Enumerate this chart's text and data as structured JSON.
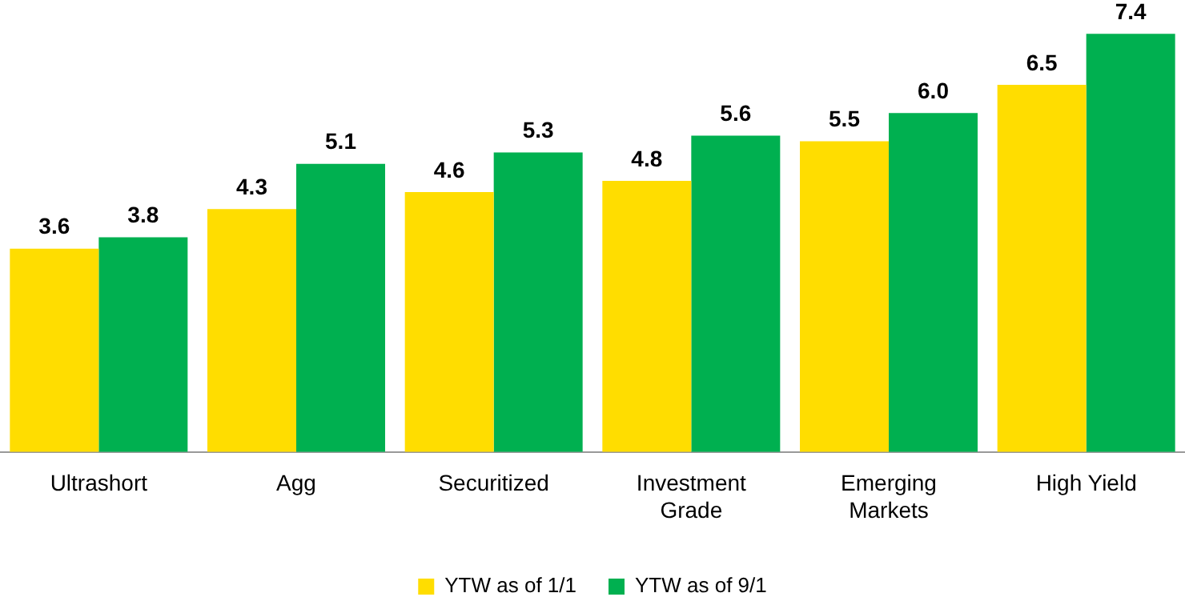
{
  "chart_data": {
    "type": "bar",
    "categories": [
      "Ultrashort",
      "Agg",
      "Securitized",
      "Investment Grade",
      "Emerging Markets",
      "High Yield"
    ],
    "series": [
      {
        "name": "YTW as of 1/1",
        "color": "#ffdd00",
        "values": [
          3.6,
          4.3,
          4.6,
          4.8,
          5.5,
          6.5
        ],
        "value_labels": [
          "3.6",
          "4.3",
          "4.6",
          "4.8",
          "5.5",
          "6.5"
        ]
      },
      {
        "name": "YTW as of 9/1",
        "color": "#00b050",
        "values": [
          3.8,
          5.1,
          5.3,
          5.6,
          6.0,
          7.4
        ],
        "value_labels": [
          "3.8",
          "5.1",
          "5.3",
          "5.6",
          "6.0",
          "7.4"
        ]
      }
    ],
    "legend": "bottom",
    "grid": false
  }
}
